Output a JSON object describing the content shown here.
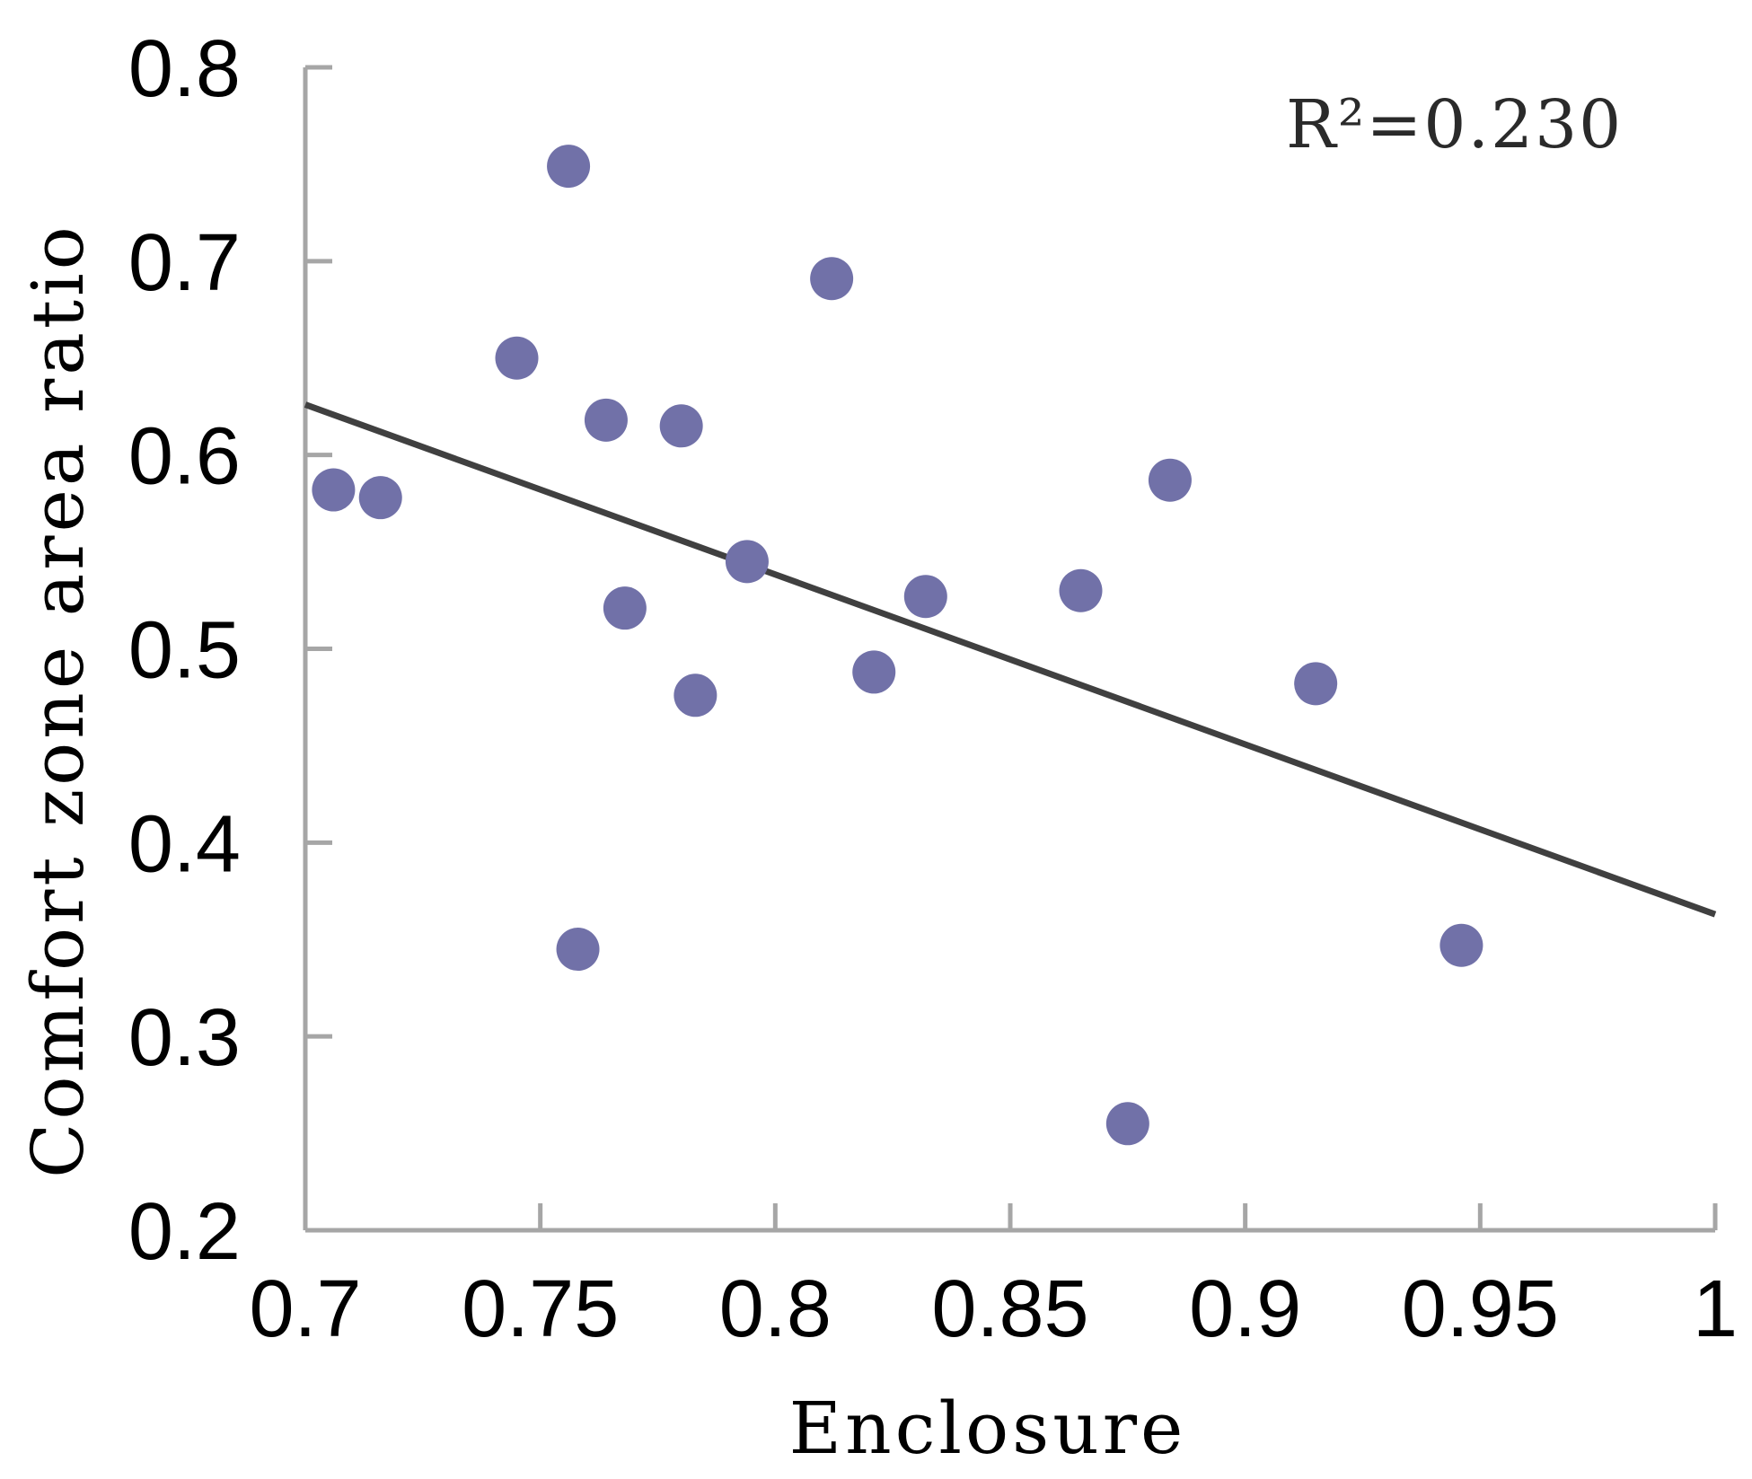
{
  "chart_data": {
    "type": "scatter",
    "title": "",
    "xlabel": "Enclosure",
    "ylabel": "Comfort zone area ratio",
    "xlim": [
      0.7,
      1.0
    ],
    "ylim": [
      0.2,
      0.8
    ],
    "x_ticks": [
      "0.7",
      "0.75",
      "0.8",
      "0.85",
      "0.9",
      "0.95",
      "1"
    ],
    "y_ticks": [
      "0.2",
      "0.3",
      "0.4",
      "0.5",
      "0.6",
      "0.7",
      "0.8"
    ],
    "grid": false,
    "legend": "none",
    "annotation": "R²=0.230",
    "point_color": "#7171a8",
    "line_color": "#404040",
    "axis_color": "#a6a6a6",
    "points": [
      {
        "x": 0.706,
        "y": 0.582
      },
      {
        "x": 0.716,
        "y": 0.578
      },
      {
        "x": 0.745,
        "y": 0.65
      },
      {
        "x": 0.756,
        "y": 0.749
      },
      {
        "x": 0.758,
        "y": 0.345
      },
      {
        "x": 0.764,
        "y": 0.618
      },
      {
        "x": 0.768,
        "y": 0.521
      },
      {
        "x": 0.78,
        "y": 0.615
      },
      {
        "x": 0.783,
        "y": 0.476
      },
      {
        "x": 0.794,
        "y": 0.545
      },
      {
        "x": 0.812,
        "y": 0.691
      },
      {
        "x": 0.821,
        "y": 0.488
      },
      {
        "x": 0.832,
        "y": 0.527
      },
      {
        "x": 0.865,
        "y": 0.53
      },
      {
        "x": 0.875,
        "y": 0.255
      },
      {
        "x": 0.884,
        "y": 0.587
      },
      {
        "x": 0.915,
        "y": 0.482
      },
      {
        "x": 0.946,
        "y": 0.347
      }
    ],
    "trendline": {
      "x": [
        0.7,
        1.0
      ],
      "y": [
        0.626,
        0.363
      ]
    }
  }
}
